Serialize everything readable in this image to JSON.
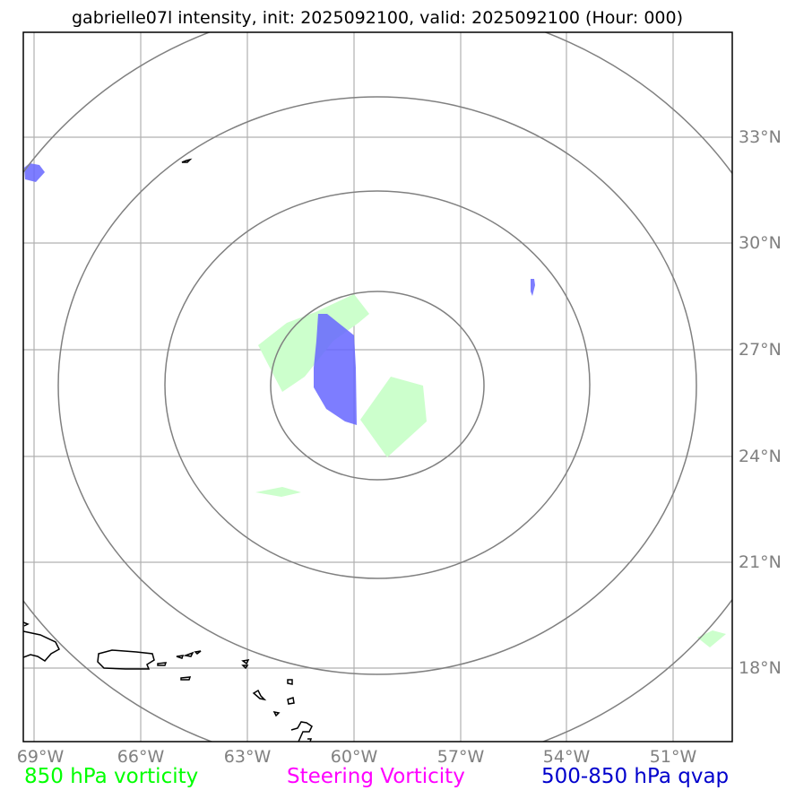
{
  "title": "gabrielle07l intensity, init: 2025092100, valid: 2025092100 (Hour: 000)",
  "lon_labels": [
    "69°W",
    "66°W",
    "63°W",
    "60°W",
    "57°W",
    "54°W",
    "51°W"
  ],
  "lat_labels": [
    "33°N",
    "30°N",
    "27°N",
    "24°N",
    "21°N",
    "18°N"
  ],
  "legend": [
    {
      "label": "850 hPa vorticity",
      "color": "#00ff00"
    },
    {
      "label": "Steering Vorticity",
      "color": "#ff00ff"
    },
    {
      "label": "500-850 hPa qvap",
      "color": "#0000cc"
    }
  ],
  "colors": {
    "grid": "#b0b0b0",
    "range_rings": "#808080",
    "coastline": "#000000",
    "vorticity_850_fill": "#ccffcc",
    "qvap_fill": "#6666ff",
    "tick_labels": "#808080"
  },
  "map_extent": {
    "lon": [
      -69.3,
      -49.3
    ],
    "lat": [
      15.9,
      35.9
    ]
  },
  "storm_center": {
    "lon": "60°W",
    "lat": "26°N"
  }
}
